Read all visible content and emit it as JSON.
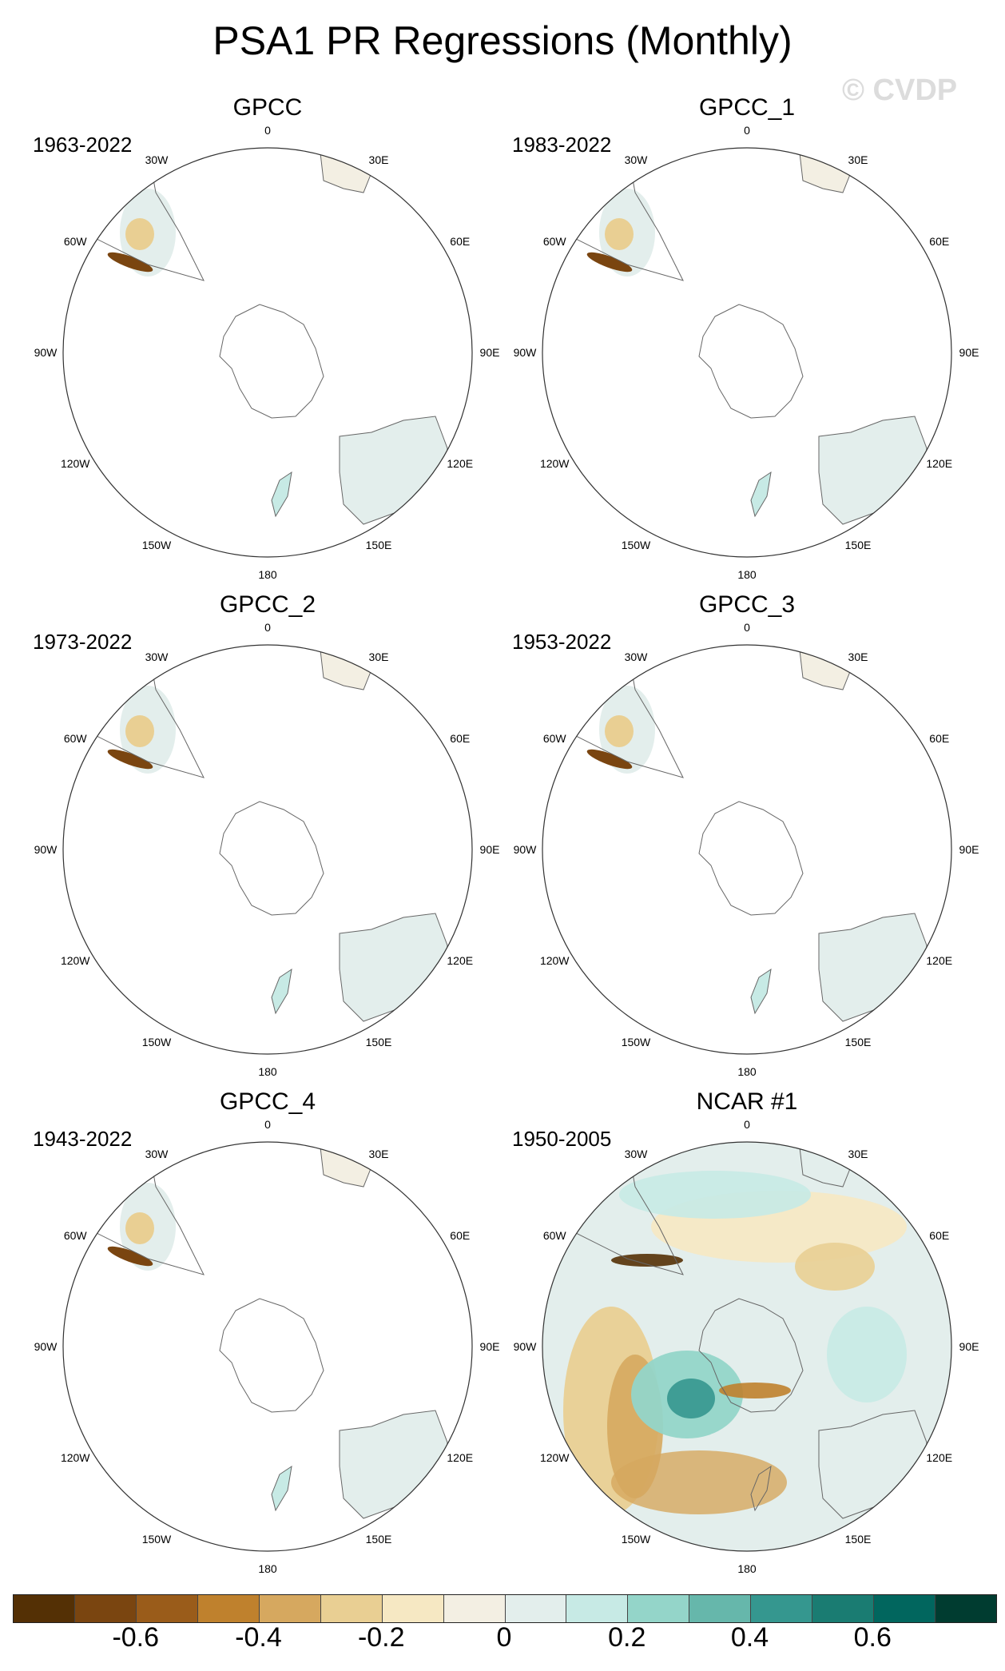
{
  "title": "PSA1 PR Regressions (Monthly)",
  "watermark": "© CVDP",
  "lon_labels": {
    "n": "0",
    "ne": "30E",
    "ene": "60E",
    "e": "90E",
    "ese": "120E",
    "se": "150E",
    "s": "180",
    "sw": "150W",
    "wsw": "120W",
    "w": "90W",
    "wnw": "60W",
    "nw": "30W"
  },
  "panels": [
    {
      "name": "GPCC",
      "period": "1963-2022"
    },
    {
      "name": "GPCC_1",
      "period": "1983-2022"
    },
    {
      "name": "GPCC_2",
      "period": "1973-2022"
    },
    {
      "name": "GPCC_3",
      "period": "1953-2022"
    },
    {
      "name": "GPCC_4",
      "period": "1943-2022"
    },
    {
      "name": "NCAR #1",
      "period": "1950-2005"
    }
  ],
  "colorbar": {
    "colors": [
      "#543005",
      "#7a4510",
      "#9a5c1a",
      "#bf812d",
      "#d6a85f",
      "#e9cf93",
      "#f6e8c3",
      "#f3efe3",
      "#e3eeec",
      "#c7eae5",
      "#94d5c9",
      "#66b7ab",
      "#35978f",
      "#1a7c72",
      "#01665e",
      "#003c30"
    ],
    "labels": [
      "-0.6",
      "-0.4",
      "-0.2",
      "0",
      "0.2",
      "0.4",
      "0.6"
    ]
  }
}
